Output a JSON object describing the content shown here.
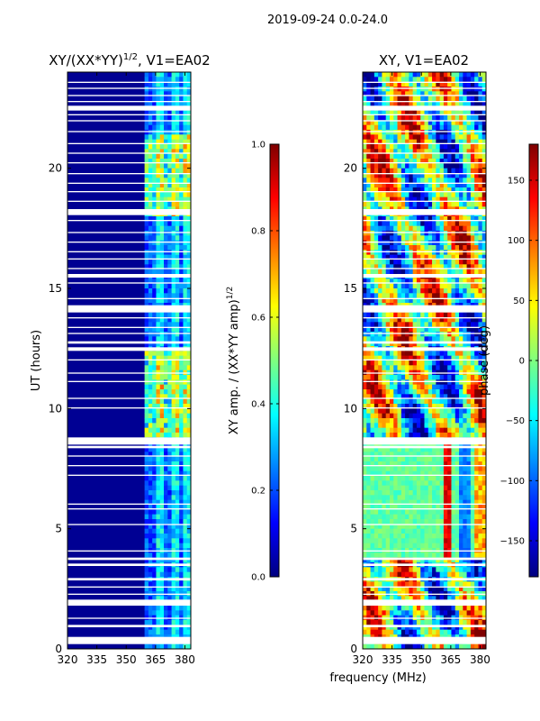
{
  "suptitle": "2019-09-24 0.0-24.0",
  "xlabel_shared": "frequency (MHz)",
  "colors": {
    "jet": [
      "#00007f",
      "#0000ff",
      "#007fff",
      "#00ffff",
      "#7fff7f",
      "#ffff00",
      "#ff7f00",
      "#ff0000",
      "#7f0000"
    ],
    "flag": "#ffffff",
    "frame": "#000000"
  },
  "chart_data": [
    {
      "type": "heatmap",
      "name": "amplitude",
      "title_base": "XY/(XX*YY)",
      "title_exp": "1/2",
      "title_tail": ", V1=EA02",
      "xlabel": "",
      "ylabel": "UT (hours)",
      "xlim": [
        320,
        383
      ],
      "ylim": [
        0,
        24
      ],
      "xticks": [
        "320",
        "335",
        "350",
        "365",
        "380"
      ],
      "xtick_values": [
        320,
        335,
        350,
        365,
        380
      ],
      "yticks": [
        "0",
        "5",
        "10",
        "15",
        "20"
      ],
      "ytick_values": [
        0,
        5,
        10,
        15,
        20
      ],
      "signal_band_mhz": [
        360,
        383
      ],
      "baseline_value": 0.02,
      "colorbar": {
        "label_base": "XY amp. / (XX*YY amp)",
        "label_exp": "1/2",
        "range": [
          0.0,
          1.0
        ],
        "ticks": [
          "0.0",
          "0.2",
          "0.4",
          "0.6",
          "0.8",
          "1.0"
        ],
        "tick_values": [
          0.0,
          0.2,
          0.4,
          0.6,
          0.8,
          1.0
        ]
      }
    },
    {
      "type": "heatmap",
      "name": "phase",
      "title": "XY, V1=EA02",
      "xlabel": "frequency (MHz)",
      "ylabel": "",
      "xlim": [
        320,
        383
      ],
      "ylim": [
        0,
        24
      ],
      "xticks": [
        "320",
        "335",
        "350",
        "365",
        "380"
      ],
      "xtick_values": [
        320,
        335,
        350,
        365,
        380
      ],
      "yticks": [
        "0",
        "5",
        "10",
        "15",
        "20"
      ],
      "ytick_values": [
        0,
        5,
        10,
        15,
        20
      ],
      "colorbar": {
        "label": "phase (deg)",
        "range": [
          -180,
          180
        ],
        "ticks": [
          "−150",
          "−100",
          "−50",
          "0",
          "50",
          "100",
          "150"
        ],
        "tick_values": [
          -150,
          -100,
          -50,
          0,
          50,
          100,
          150
        ]
      }
    }
  ],
  "flagged_hours": [
    [
      0.2,
      0.5
    ],
    [
      0.9,
      1.0
    ],
    [
      1.25,
      1.3
    ],
    [
      1.8,
      2.05
    ],
    [
      2.25,
      2.3
    ],
    [
      2.55,
      2.6
    ],
    [
      2.85,
      2.95
    ],
    [
      3.45,
      3.55
    ],
    [
      3.7,
      3.8
    ],
    [
      4.05,
      4.1
    ],
    [
      5.15,
      5.2
    ],
    [
      5.8,
      5.85
    ],
    [
      6.0,
      6.05
    ],
    [
      7.2,
      7.25
    ],
    [
      7.6,
      7.65
    ],
    [
      8.0,
      8.05
    ],
    [
      8.35,
      8.45
    ],
    [
      8.5,
      8.8
    ],
    [
      10.0,
      10.05
    ],
    [
      10.4,
      10.45
    ],
    [
      11.1,
      11.15
    ],
    [
      11.45,
      11.5
    ],
    [
      12.0,
      12.05
    ],
    [
      12.4,
      12.55
    ],
    [
      12.7,
      12.8
    ],
    [
      13.1,
      13.15
    ],
    [
      13.35,
      13.4
    ],
    [
      13.75,
      13.8
    ],
    [
      14.0,
      14.3
    ],
    [
      14.55,
      14.6
    ],
    [
      15.2,
      15.25
    ],
    [
      15.45,
      15.6
    ],
    [
      15.8,
      15.85
    ],
    [
      16.2,
      16.25
    ],
    [
      16.5,
      16.55
    ],
    [
      16.9,
      16.95
    ],
    [
      17.3,
      17.35
    ],
    [
      17.8,
      17.85
    ],
    [
      18.05,
      18.3
    ],
    [
      18.6,
      18.65
    ],
    [
      19.0,
      19.05
    ],
    [
      19.35,
      19.4
    ],
    [
      19.75,
      19.8
    ],
    [
      20.2,
      20.25
    ],
    [
      20.6,
      20.65
    ],
    [
      21.0,
      21.05
    ],
    [
      21.5,
      21.55
    ],
    [
      21.95,
      22.0
    ],
    [
      22.2,
      22.25
    ],
    [
      22.4,
      22.6
    ],
    [
      22.75,
      22.8
    ],
    [
      23.0,
      23.05
    ],
    [
      23.3,
      23.35
    ],
    [
      23.55,
      23.6
    ]
  ]
}
